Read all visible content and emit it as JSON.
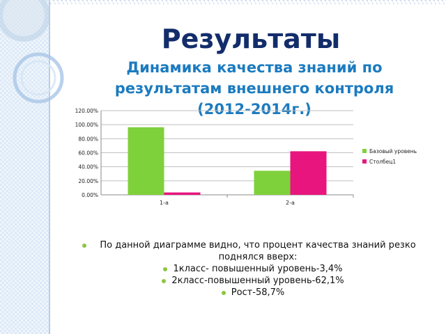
{
  "slide": {
    "title": "Результаты",
    "subtitle": "Динамика качества знаний по результатам внешнего контроля (2012-2014г.)",
    "bullets": [
      "По данной диаграмме видно, что процент качества знаний резко поднялся вверх:",
      "1класс- повышенный уровень-3,4%",
      "2класс-повышенный уровень-62,1%",
      "Рост-58,7%"
    ],
    "bullet_color": "#8dc63f"
  },
  "chart_data": {
    "type": "bar",
    "categories": [
      "1-а",
      "2-а"
    ],
    "series": [
      {
        "name": "Базовый уровень",
        "values": [
          0.963,
          0.343
        ],
        "color": "#7fd13b"
      },
      {
        "name": "Столбец1",
        "values": [
          0.034,
          0.621
        ],
        "color": "#e8157e"
      }
    ],
    "ylim": [
      0,
      1.2
    ],
    "yticks": [
      "0.00%",
      "20.00%",
      "40.00%",
      "60.00%",
      "80.00%",
      "100.00%",
      "120.00%"
    ],
    "legend_position": "right",
    "grid": true,
    "title": "",
    "xlabel": "",
    "ylabel": ""
  }
}
